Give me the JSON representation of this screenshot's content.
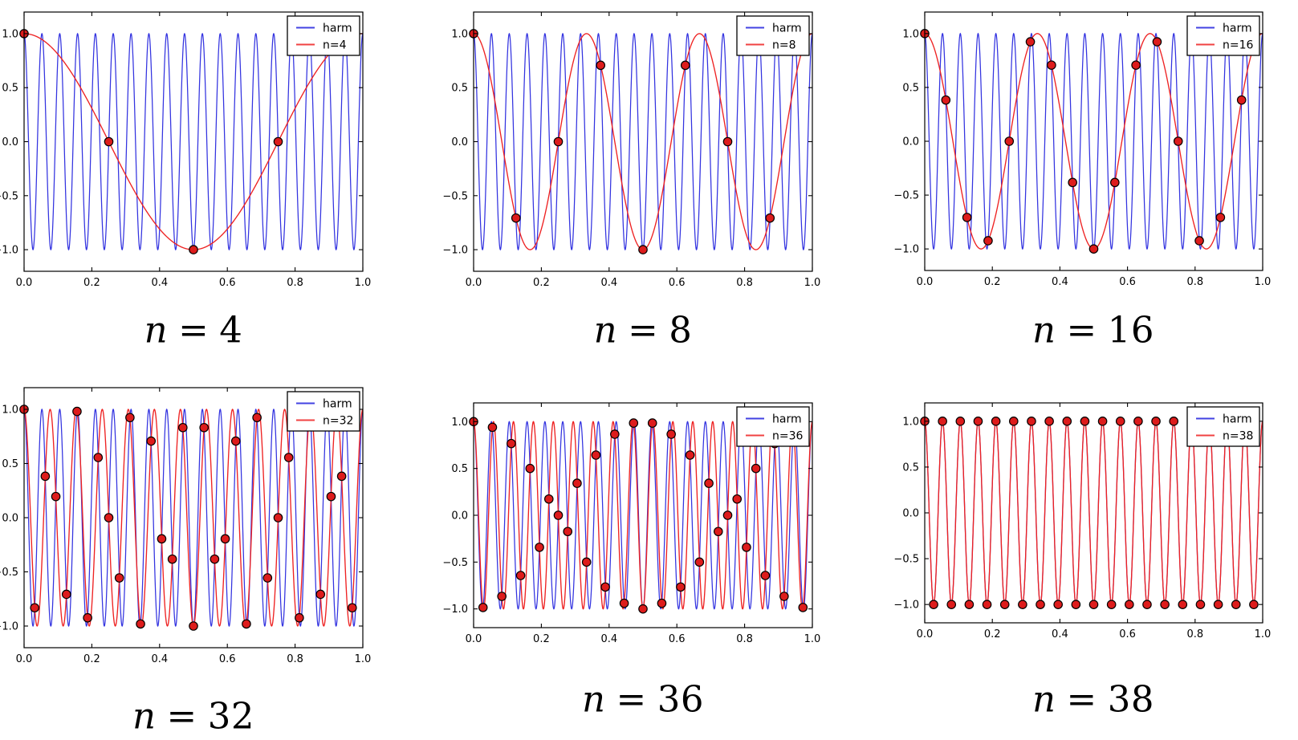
{
  "figure_background": "#ffffff",
  "captions": [
    {
      "symbol": "n",
      "eq": "=",
      "value": "4"
    },
    {
      "symbol": "n",
      "eq": "=",
      "value": "8"
    },
    {
      "symbol": "n",
      "eq": "=",
      "value": "16"
    },
    {
      "symbol": "n",
      "eq": "=",
      "value": "32"
    },
    {
      "symbol": "n",
      "eq": "=",
      "value": "36"
    },
    {
      "symbol": "n",
      "eq": "=",
      "value": "38"
    }
  ],
  "colors": {
    "harmonic_line": "#2222dd",
    "aliased_line": "#ee2222",
    "marker_fill": "#dd1c1c",
    "marker_edge": "#000000",
    "frame": "#000000",
    "legend_background": "#ffffff",
    "legend_border": "#000000"
  },
  "chart_data": [
    {
      "type": "line",
      "caption": "n = 4",
      "x_range": [
        0,
        1
      ],
      "y_range": [
        -1.2,
        1.2
      ],
      "x_ticks": [
        0.0,
        0.2,
        0.4,
        0.6,
        0.8,
        1.0
      ],
      "x_tick_labels": [
        "0.0",
        "0.2",
        "0.4",
        "0.6",
        "0.8",
        "1.0"
      ],
      "y_ticks": [
        -1.0,
        -0.5,
        0.0,
        0.5,
        1.0
      ],
      "y_tick_labels": [
        "−1.0",
        "−0.5",
        "0.0",
        "0.5",
        "1.0"
      ],
      "grid": false,
      "legend_position": "upper right",
      "legend": [
        {
          "label": "harm",
          "color": "#2222dd"
        },
        {
          "label": "n=4",
          "color": "#ee2222"
        }
      ],
      "series": [
        {
          "name": "harm",
          "function": "cos(2*pi*19*x)",
          "frequency": 19,
          "amplitude": 1,
          "color": "#2222dd"
        },
        {
          "name": "n=4",
          "function": "cos(2*pi*1*x)",
          "frequency": 1,
          "amplitude": 1,
          "color": "#ee2222"
        }
      ],
      "samples": {
        "n": 4,
        "x_rule": "k/4 for k=0..3",
        "y": [
          1,
          0,
          -1,
          0
        ]
      }
    },
    {
      "type": "line",
      "caption": "n = 8",
      "x_range": [
        0,
        1
      ],
      "y_range": [
        -1.2,
        1.2
      ],
      "x_ticks": [
        0.0,
        0.2,
        0.4,
        0.6,
        0.8,
        1.0
      ],
      "x_tick_labels": [
        "0.0",
        "0.2",
        "0.4",
        "0.6",
        "0.8",
        "1.0"
      ],
      "y_ticks": [
        -1.0,
        -0.5,
        0.0,
        0.5,
        1.0
      ],
      "y_tick_labels": [
        "−1.0",
        "−0.5",
        "0.0",
        "0.5",
        "1.0"
      ],
      "grid": false,
      "legend_position": "upper right",
      "legend": [
        {
          "label": "harm",
          "color": "#2222dd"
        },
        {
          "label": "n=8",
          "color": "#ee2222"
        }
      ],
      "series": [
        {
          "name": "harm",
          "function": "cos(2*pi*19*x)",
          "frequency": 19,
          "amplitude": 1,
          "color": "#2222dd"
        },
        {
          "name": "n=8",
          "function": "cos(2*pi*3*x)",
          "frequency": 3,
          "amplitude": 1,
          "color": "#ee2222"
        }
      ],
      "samples": {
        "n": 8,
        "x_rule": "k/8 for k=0..7",
        "y": [
          1,
          -0.7071,
          0,
          0.7071,
          -1,
          0.7071,
          0,
          -0.7071
        ]
      }
    },
    {
      "type": "line",
      "caption": "n = 16",
      "x_range": [
        0,
        1
      ],
      "y_range": [
        -1.2,
        1.2
      ],
      "x_ticks": [
        0.0,
        0.2,
        0.4,
        0.6,
        0.8,
        1.0
      ],
      "x_tick_labels": [
        "0.0",
        "0.2",
        "0.4",
        "0.6",
        "0.8",
        "1.0"
      ],
      "y_ticks": [
        -1.0,
        -0.5,
        0.0,
        0.5,
        1.0
      ],
      "y_tick_labels": [
        "−1.0",
        "−0.5",
        "0.0",
        "0.5",
        "1.0"
      ],
      "grid": false,
      "legend_position": "upper right",
      "legend": [
        {
          "label": "harm",
          "color": "#2222dd"
        },
        {
          "label": "n=16",
          "color": "#ee2222"
        }
      ],
      "series": [
        {
          "name": "harm",
          "function": "cos(2*pi*19*x)",
          "frequency": 19,
          "amplitude": 1,
          "color": "#2222dd"
        },
        {
          "name": "n=16",
          "function": "cos(2*pi*3*x)",
          "frequency": 3,
          "amplitude": 1,
          "color": "#ee2222"
        }
      ],
      "samples": {
        "n": 16,
        "x_rule": "k/16 for k=0..15",
        "y": [
          1,
          0.3827,
          -0.7071,
          -0.9239,
          0,
          0.9239,
          0.7071,
          -0.3827,
          -1,
          -0.3827,
          0.7071,
          0.9239,
          0,
          -0.9239,
          -0.7071,
          0.3827
        ]
      }
    },
    {
      "type": "line",
      "caption": "n = 32",
      "x_range": [
        0,
        1
      ],
      "y_range": [
        -1.2,
        1.2
      ],
      "x_ticks": [
        0.0,
        0.2,
        0.4,
        0.6,
        0.8,
        1.0
      ],
      "x_tick_labels": [
        "0.0",
        "0.2",
        "0.4",
        "0.6",
        "0.8",
        "1.0"
      ],
      "y_ticks": [
        -1.0,
        -0.5,
        0.0,
        0.5,
        1.0
      ],
      "y_tick_labels": [
        "−1.0",
        "−0.5",
        "0.0",
        "0.5",
        "1.0"
      ],
      "grid": false,
      "legend_position": "upper right",
      "legend": [
        {
          "label": "harm",
          "color": "#2222dd"
        },
        {
          "label": "n=32",
          "color": "#ee2222"
        }
      ],
      "series": [
        {
          "name": "harm",
          "function": "cos(2*pi*19*x)",
          "frequency": 19,
          "amplitude": 1,
          "color": "#2222dd"
        },
        {
          "name": "n=32",
          "function": "cos(2*pi*13*x)",
          "frequency": 13,
          "amplitude": 1,
          "color": "#ee2222"
        }
      ],
      "samples": {
        "n": 32,
        "x_rule": "k/32 for k=0..31",
        "y": [
          1,
          -0.8315,
          0.3827,
          0.1951,
          -0.7071,
          0.9808,
          -0.9239,
          0.5556,
          0,
          -0.5556,
          0.9239,
          -0.9808,
          0.7071,
          -0.1951,
          -0.3827,
          0.8315,
          -1,
          0.8315,
          -0.3827,
          -0.1951,
          0.7071,
          -0.9808,
          0.9239,
          -0.5556,
          0,
          0.5556,
          -0.9239,
          0.9808,
          -0.7071,
          0.1951,
          0.3827,
          -0.8315
        ]
      }
    },
    {
      "type": "line",
      "caption": "n = 36",
      "x_range": [
        0,
        1
      ],
      "y_range": [
        -1.2,
        1.2
      ],
      "x_ticks": [
        0.0,
        0.2,
        0.4,
        0.6,
        0.8,
        1.0
      ],
      "x_tick_labels": [
        "0.0",
        "0.2",
        "0.4",
        "0.6",
        "0.8",
        "1.0"
      ],
      "y_ticks": [
        -1.0,
        -0.5,
        0.0,
        0.5,
        1.0
      ],
      "y_tick_labels": [
        "−1.0",
        "−0.5",
        "0.0",
        "0.5",
        "1.0"
      ],
      "grid": false,
      "legend_position": "upper right",
      "legend": [
        {
          "label": "harm",
          "color": "#2222dd"
        },
        {
          "label": "n=36",
          "color": "#ee2222"
        }
      ],
      "series": [
        {
          "name": "harm",
          "function": "cos(2*pi*19*x)",
          "frequency": 19,
          "amplitude": 1,
          "color": "#2222dd"
        },
        {
          "name": "n=36",
          "function": "cos(2*pi*17*x)",
          "frequency": 17,
          "amplitude": 1,
          "color": "#ee2222"
        }
      ],
      "samples": {
        "n": 36,
        "x_rule": "k/36 for k=0..35",
        "y": [
          1,
          -0.9848,
          0.9397,
          -0.866,
          0.766,
          -0.6428,
          0.5,
          -0.342,
          0.1736,
          0,
          -0.1736,
          0.342,
          -0.5,
          0.6428,
          -0.766,
          0.866,
          -0.9397,
          0.9848,
          -1,
          0.9848,
          -0.9397,
          0.866,
          -0.766,
          0.6428,
          -0.5,
          0.342,
          -0.1736,
          0,
          0.1736,
          -0.342,
          0.5,
          -0.6428,
          0.766,
          -0.866,
          0.9397,
          -0.9848
        ]
      }
    },
    {
      "type": "line",
      "caption": "n = 38",
      "x_range": [
        0,
        1
      ],
      "y_range": [
        -1.2,
        1.2
      ],
      "x_ticks": [
        0.0,
        0.2,
        0.4,
        0.6,
        0.8,
        1.0
      ],
      "x_tick_labels": [
        "0.0",
        "0.2",
        "0.4",
        "0.6",
        "0.8",
        "1.0"
      ],
      "y_ticks": [
        -1.0,
        -0.5,
        0.0,
        0.5,
        1.0
      ],
      "y_tick_labels": [
        "−1.0",
        "−0.5",
        "0.0",
        "0.5",
        "1.0"
      ],
      "grid": false,
      "legend_position": "upper right",
      "legend": [
        {
          "label": "harm",
          "color": "#2222dd"
        },
        {
          "label": "n=38",
          "color": "#ee2222"
        }
      ],
      "series": [
        {
          "name": "harm",
          "function": "cos(2*pi*19*x)",
          "frequency": 19,
          "amplitude": 1,
          "color": "#2222dd"
        },
        {
          "name": "n=38",
          "function": "cos(2*pi*19*x)",
          "frequency": 19,
          "amplitude": 1,
          "color": "#ee2222"
        }
      ],
      "samples": {
        "n": 38,
        "x_rule": "k/38 for k=0..37",
        "y": [
          1,
          -1,
          1,
          -1,
          1,
          -1,
          1,
          -1,
          1,
          -1,
          1,
          -1,
          1,
          -1,
          1,
          -1,
          1,
          -1,
          1,
          -1,
          1,
          -1,
          1,
          -1,
          1,
          -1,
          1,
          -1,
          1,
          -1,
          1,
          -1,
          1,
          -1,
          1,
          -1,
          1,
          -1
        ]
      }
    }
  ]
}
